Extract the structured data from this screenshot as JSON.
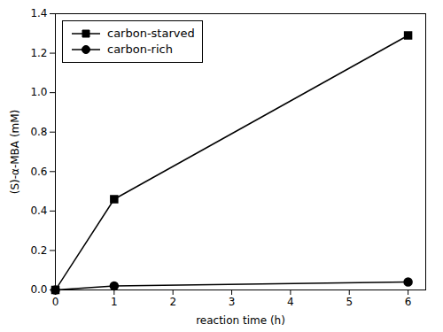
{
  "chart_data": {
    "type": "line",
    "xlabel": "reaction time (h)",
    "ylabel": "(S)-α-MBA (mM)",
    "x": [
      0,
      1,
      6
    ],
    "series": [
      {
        "name": "carbon-starved",
        "color": "#000000",
        "marker": "square",
        "values": [
          0.0,
          0.46,
          1.29
        ]
      },
      {
        "name": "carbon-rich",
        "color": "#000000",
        "marker": "circle",
        "values": [
          0.0,
          0.02,
          0.04
        ]
      }
    ],
    "xlim": [
      0,
      6.3
    ],
    "xticks": [
      0,
      1,
      2,
      3,
      4,
      5,
      6
    ],
    "ylim": [
      0,
      1.4
    ],
    "yticks": [
      {
        "value": 0,
        "label": "0.0"
      },
      0.2,
      0.4,
      0.6,
      0.8,
      {
        "value": 1,
        "label": "1.0"
      },
      1.2,
      1.4
    ],
    "legend": "upper left",
    "grid": false
  }
}
